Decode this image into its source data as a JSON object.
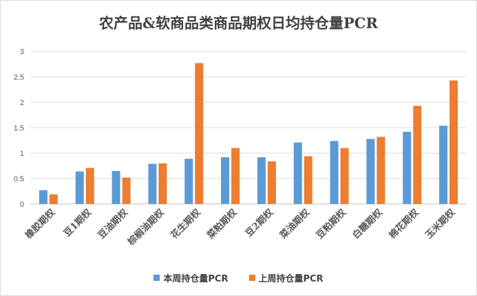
{
  "colors": {
    "series1": "#5b9bd5",
    "series2": "#ed7d31",
    "grid": "#d9d9d9",
    "axis": "#bfbfbf",
    "text": "#595959"
  },
  "chart_data": {
    "type": "bar",
    "title": "农产品&软商品类商品期权日均持仓量PCR",
    "xlabel": "",
    "ylabel": "",
    "ylim": [
      0,
      3
    ],
    "yticks": [
      "0",
      "0.5",
      "1",
      "1.5",
      "2",
      "2.5",
      "3"
    ],
    "grid": true,
    "legend_position": "bottom",
    "categories": [
      "橡胶期权",
      "豆1期权",
      "豆油期权",
      "棕榈油期权",
      "花生期权",
      "菜粕期权",
      "豆2期权",
      "菜油期权",
      "豆粕期权",
      "白糖期权",
      "棉花期权",
      "玉米期权"
    ],
    "series": [
      {
        "name": "本周持仓量PCR",
        "values": [
          0.27,
          0.64,
          0.65,
          0.79,
          0.89,
          0.92,
          0.92,
          1.21,
          1.24,
          1.28,
          1.42,
          1.54
        ]
      },
      {
        "name": "上周持仓量PCR",
        "values": [
          0.19,
          0.71,
          0.52,
          0.8,
          2.77,
          1.1,
          0.84,
          0.94,
          1.1,
          1.32,
          1.93,
          2.43
        ]
      }
    ]
  }
}
